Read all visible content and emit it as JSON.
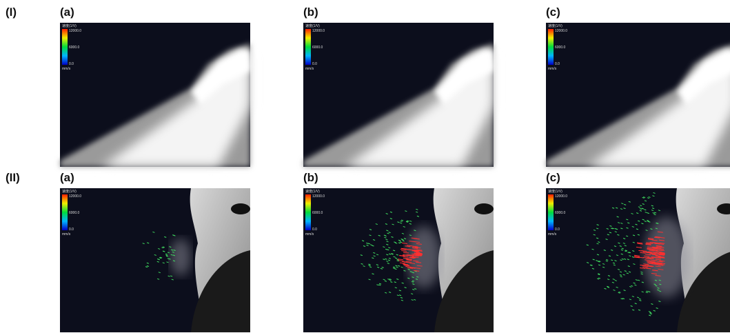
{
  "rows": [
    {
      "label": "(I)",
      "panels": [
        {
          "label": "(a)",
          "colorbar": {
            "title": "速度(1/V)",
            "max": "12000.0",
            "mid": "6000.0",
            "min": "0.0",
            "unit": "mm/s"
          }
        },
        {
          "label": "(b)",
          "colorbar": {
            "title": "速度(1/V)",
            "max": "12000.0",
            "mid": "6000.0",
            "min": "0.0",
            "unit": "mm/s"
          }
        },
        {
          "label": "(c)",
          "colorbar": {
            "title": "速度(1/V)",
            "max": "12000.0",
            "mid": "6000.0",
            "min": "0.0",
            "unit": "mm/s"
          }
        }
      ]
    },
    {
      "label": "(II)",
      "panels": [
        {
          "label": "(a)",
          "colorbar": {
            "title": "速度(1/V)",
            "max": "12000.0",
            "mid": "6000.0",
            "min": "0.0",
            "unit": "mm/s"
          }
        },
        {
          "label": "(b)",
          "colorbar": {
            "title": "速度(1/V)",
            "max": "12000.0",
            "mid": "6000.0",
            "min": "0.0",
            "unit": "mm/s"
          }
        },
        {
          "label": "(c)",
          "colorbar": {
            "title": "速度(1/V)",
            "max": "12000.0",
            "mid": "6000.0",
            "min": "0.0",
            "unit": "mm/s"
          }
        }
      ]
    }
  ]
}
